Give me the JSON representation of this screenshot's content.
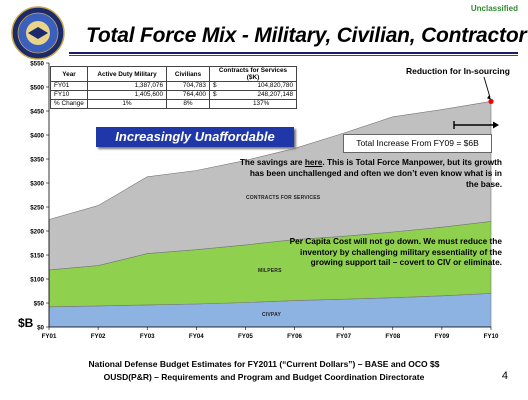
{
  "header": {
    "classification": "Unclassified",
    "title": "Total Force Mix - Military, Civilian, Contractor"
  },
  "summary_table": {
    "headers": [
      "Year",
      "Active Duty Military",
      "Civilians",
      "Contracts for Services ($K)"
    ],
    "rows": [
      [
        "FY01",
        "1,387,076",
        "704,783",
        "$",
        "104,820,780"
      ],
      [
        "FY10",
        "1,405,600",
        "764,400",
        "$",
        "248,207,148"
      ],
      [
        "% Change",
        "1%",
        "8%",
        "",
        "137%"
      ]
    ]
  },
  "callouts": {
    "banner": "Increasingly Unaffordable",
    "reduction": "Reduction for In-sourcing",
    "total_increase": "Total Increase From FY09 = $6B",
    "note1_a": "The savings are ",
    "note1_link": "here",
    "note1_b": ".  This is Total Force Manpower, but its growth has been unchallenged and often we don’t even know what is in the base.",
    "note2": "Per Capita Cost will not go down. We must reduce the inventory by challenging military essentiality of the growing support tail – covert to CIV or eliminate."
  },
  "chart_data": {
    "type": "area",
    "stacked": true,
    "x": [
      "FY01",
      "FY02",
      "FY03",
      "FY04",
      "FY05",
      "FY06",
      "FY07",
      "FY08",
      "FY09",
      "FY10"
    ],
    "yticks": [
      "$0",
      "$50",
      "$100",
      "$150",
      "$200",
      "$250",
      "$300",
      "$350",
      "$400",
      "$450",
      "$500",
      "$550"
    ],
    "ylim": [
      0,
      550
    ],
    "ylabel": "$B",
    "series": [
      {
        "name": "CIVPAY",
        "values": [
          42,
          44,
          46,
          48,
          51,
          55,
          58,
          61,
          65,
          70
        ],
        "color": "#8db3e2"
      },
      {
        "name": "MILPERS",
        "values": [
          77,
          84,
          107,
          113,
          120,
          127,
          131,
          137,
          143,
          150
        ],
        "color": "#8fd14f"
      },
      {
        "name": "CONTRACTS FOR SERVICES",
        "values": [
          105,
          125,
          160,
          165,
          176,
          190,
          215,
          240,
          245,
          250
        ],
        "color": "#c0c0c0"
      }
    ],
    "end_marker": {
      "x": "FY10",
      "value": 470,
      "color": "#ff0000"
    }
  },
  "footer": {
    "line1": "National Defense Budget Estimates for FY2011 (“Current Dollars”) – BASE and OCO  $$",
    "line2": "OUSD(P&R) – Requirements and Program and Budget Coordination Directorate",
    "page": "4"
  }
}
